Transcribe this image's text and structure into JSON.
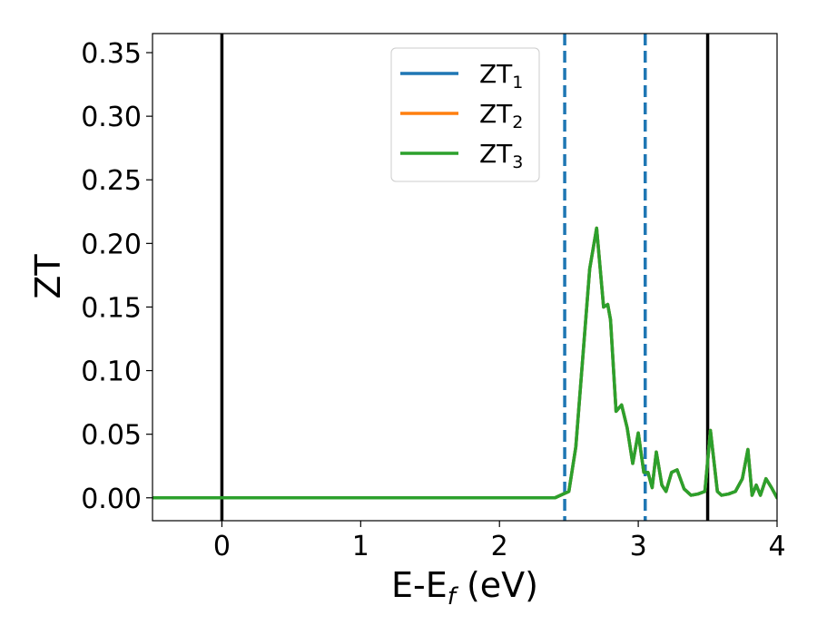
{
  "chart_data": {
    "type": "line",
    "xlabel": "E-E",
    "xlabel_sub": "f",
    "xlabel_unit": " (eV)",
    "ylabel": "ZT",
    "xlim": [
      -0.5,
      4.0
    ],
    "ylim": [
      -0.018,
      0.365
    ],
    "xticks": [
      0,
      1,
      2,
      3,
      4
    ],
    "xtick_labels": [
      "0",
      "1",
      "2",
      "3",
      "4"
    ],
    "yticks": [
      0.0,
      0.05,
      0.1,
      0.15,
      0.2,
      0.25,
      0.3,
      0.35
    ],
    "ytick_labels": [
      "0.00",
      "0.05",
      "0.10",
      "0.15",
      "0.20",
      "0.25",
      "0.30",
      "0.35"
    ],
    "grid": false,
    "legend_position": "top-center",
    "vertical_lines": [
      {
        "x": 0.0,
        "style": "solid",
        "color": "#000000"
      },
      {
        "x": 3.5,
        "style": "solid",
        "color": "#000000"
      },
      {
        "x": 2.47,
        "style": "dashed",
        "color": "#1f77b4"
      },
      {
        "x": 3.05,
        "style": "dashed",
        "color": "#1f77b4"
      }
    ],
    "series": [
      {
        "name": "ZT",
        "sub": "1",
        "color": "#1f77b4",
        "x": [
          -0.5,
          2.4,
          2.5,
          2.55,
          2.6,
          2.65,
          2.7,
          2.75,
          2.78,
          2.8,
          2.84,
          2.88,
          2.92,
          2.96,
          3.0,
          3.04,
          3.07,
          3.1,
          3.13,
          3.17,
          3.2,
          3.24,
          3.28,
          3.33,
          3.38,
          3.43,
          3.48,
          3.52,
          3.57,
          3.6,
          3.65,
          3.7,
          3.75,
          3.79,
          3.82,
          3.85,
          3.88,
          3.92,
          3.96,
          4.0
        ],
        "y": [
          0.0,
          0.0,
          0.005,
          0.04,
          0.11,
          0.18,
          0.212,
          0.15,
          0.152,
          0.14,
          0.068,
          0.073,
          0.055,
          0.027,
          0.051,
          0.02,
          0.02,
          0.008,
          0.036,
          0.01,
          0.005,
          0.02,
          0.022,
          0.007,
          0.002,
          0.003,
          0.005,
          0.053,
          0.005,
          0.002,
          0.003,
          0.005,
          0.015,
          0.038,
          0.002,
          0.01,
          0.002,
          0.015,
          0.008,
          0.0
        ]
      },
      {
        "name": "ZT",
        "sub": "2",
        "color": "#ff7f0e",
        "x": [
          -0.5,
          2.4,
          2.5,
          2.55,
          2.6,
          2.65,
          2.7,
          2.75,
          2.78,
          2.8,
          2.84,
          2.88,
          2.92,
          2.96,
          3.0,
          3.04,
          3.07,
          3.1,
          3.13,
          3.17,
          3.2,
          3.24,
          3.28,
          3.33,
          3.38,
          3.43,
          3.48,
          3.52,
          3.57,
          3.6,
          3.65,
          3.7,
          3.75,
          3.79,
          3.82,
          3.85,
          3.88,
          3.92,
          3.96,
          4.0
        ],
        "y": [
          0.0,
          0.0,
          0.005,
          0.04,
          0.11,
          0.18,
          0.212,
          0.15,
          0.152,
          0.14,
          0.068,
          0.073,
          0.055,
          0.027,
          0.051,
          0.02,
          0.02,
          0.008,
          0.036,
          0.01,
          0.005,
          0.02,
          0.022,
          0.007,
          0.002,
          0.003,
          0.005,
          0.053,
          0.005,
          0.002,
          0.003,
          0.005,
          0.015,
          0.038,
          0.002,
          0.01,
          0.002,
          0.015,
          0.008,
          0.0
        ]
      },
      {
        "name": "ZT",
        "sub": "3",
        "color": "#2ca02c",
        "x": [
          -0.5,
          2.4,
          2.5,
          2.55,
          2.6,
          2.65,
          2.7,
          2.75,
          2.78,
          2.8,
          2.84,
          2.88,
          2.92,
          2.96,
          3.0,
          3.04,
          3.07,
          3.1,
          3.13,
          3.17,
          3.2,
          3.24,
          3.28,
          3.33,
          3.38,
          3.43,
          3.48,
          3.52,
          3.57,
          3.6,
          3.65,
          3.7,
          3.75,
          3.79,
          3.82,
          3.85,
          3.88,
          3.92,
          3.96,
          4.0
        ],
        "y": [
          0.0,
          0.0,
          0.005,
          0.04,
          0.11,
          0.18,
          0.212,
          0.15,
          0.152,
          0.14,
          0.068,
          0.073,
          0.055,
          0.027,
          0.051,
          0.02,
          0.02,
          0.008,
          0.036,
          0.01,
          0.005,
          0.02,
          0.022,
          0.007,
          0.002,
          0.003,
          0.005,
          0.053,
          0.005,
          0.002,
          0.003,
          0.005,
          0.015,
          0.038,
          0.002,
          0.01,
          0.002,
          0.015,
          0.008,
          0.0
        ]
      }
    ]
  }
}
